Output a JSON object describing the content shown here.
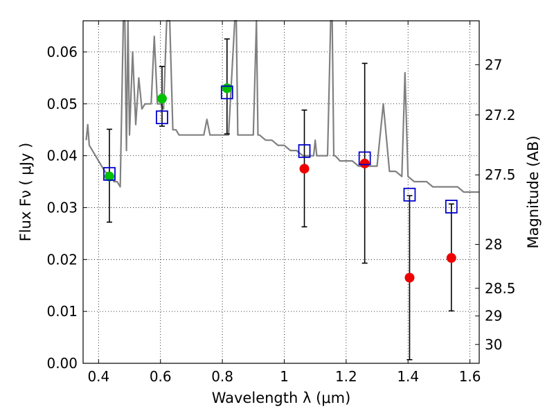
{
  "chart_data": {
    "type": "scatter",
    "title": "",
    "xlabel": "Wavelength  λ (μm)",
    "ylabel": "Flux  Fν  ( μJy )",
    "ylabel_right": "Magnitude (AB)",
    "xlim": [
      0.35,
      1.63
    ],
    "ylim": [
      0.0,
      0.066
    ],
    "grid": true,
    "x_ticks": [
      0.4,
      0.6,
      0.8,
      1.0,
      1.2,
      1.4,
      1.6
    ],
    "x_tick_labels": [
      "0.4",
      "0.6",
      "0.8",
      "1",
      "1.2",
      "1.4",
      "1.6"
    ],
    "y_ticks": [
      0.0,
      0.01,
      0.02,
      0.03,
      0.04,
      0.05,
      0.06
    ],
    "y_tick_labels": [
      "0.00",
      "0.01",
      "0.02",
      "0.03",
      "0.04",
      "0.05",
      "0.06"
    ],
    "mag_ticks": [
      27,
      27.2,
      27.5,
      28,
      28.5,
      29,
      30
    ],
    "mag_tick_labels": [
      "27",
      "27.2",
      "27.5",
      "28",
      "28.5",
      "29",
      "30"
    ],
    "colors": {
      "sed": "#808080",
      "detection": "#00c000",
      "nondetection": "#ee0000",
      "model": "#0000cc",
      "errorbar": "#000000"
    },
    "model_sed_line": {
      "x": [
        0.36,
        0.365,
        0.37,
        0.38,
        0.4,
        0.42,
        0.44,
        0.45,
        0.46,
        0.47,
        0.48,
        0.485,
        0.49,
        0.495,
        0.5,
        0.51,
        0.52,
        0.53,
        0.54,
        0.55,
        0.56,
        0.57,
        0.58,
        0.59,
        0.6,
        0.61,
        0.62,
        0.625,
        0.63,
        0.64,
        0.65,
        0.66,
        0.68,
        0.7,
        0.72,
        0.74,
        0.75,
        0.76,
        0.78,
        0.8,
        0.82,
        0.84,
        0.845,
        0.85,
        0.86,
        0.88,
        0.9,
        0.91,
        0.915,
        0.92,
        0.94,
        0.96,
        0.98,
        1.0,
        1.02,
        1.04,
        1.06,
        1.08,
        1.095,
        1.1,
        1.105,
        1.12,
        1.14,
        1.15,
        1.155,
        1.16,
        1.165,
        1.18,
        1.2,
        1.22,
        1.24,
        1.26,
        1.28,
        1.3,
        1.32,
        1.34,
        1.36,
        1.38,
        1.39,
        1.4,
        1.42,
        1.44,
        1.46,
        1.48,
        1.5,
        1.52,
        1.54,
        1.56,
        1.58,
        1.6,
        1.63
      ],
      "y": [
        0.043,
        0.046,
        0.042,
        0.041,
        0.039,
        0.037,
        0.036,
        0.035,
        0.035,
        0.034,
        0.066,
        0.066,
        0.041,
        0.066,
        0.044,
        0.06,
        0.046,
        0.055,
        0.049,
        0.05,
        0.05,
        0.05,
        0.063,
        0.05,
        0.05,
        0.049,
        0.066,
        0.066,
        0.066,
        0.045,
        0.045,
        0.044,
        0.044,
        0.044,
        0.044,
        0.044,
        0.047,
        0.044,
        0.044,
        0.044,
        0.044,
        0.066,
        0.066,
        0.044,
        0.044,
        0.044,
        0.044,
        0.066,
        0.044,
        0.044,
        0.043,
        0.043,
        0.042,
        0.042,
        0.041,
        0.041,
        0.04,
        0.04,
        0.04,
        0.043,
        0.04,
        0.04,
        0.04,
        0.066,
        0.066,
        0.04,
        0.04,
        0.039,
        0.039,
        0.039,
        0.038,
        0.038,
        0.038,
        0.038,
        0.05,
        0.037,
        0.037,
        0.036,
        0.056,
        0.036,
        0.035,
        0.035,
        0.035,
        0.034,
        0.034,
        0.034,
        0.034,
        0.034,
        0.033,
        0.033,
        0.033
      ]
    },
    "series": [
      {
        "marker": "circle",
        "x": [
          0.435,
          0.605,
          0.815
        ],
        "y": [
          0.036,
          0.051,
          0.053
        ],
        "yerr_low": [
          0.0272,
          0.0457,
          0.0442
        ],
        "yerr_high": [
          0.0451,
          0.0572,
          0.0625
        ]
      },
      {
        "marker": "circle",
        "x": [
          1.065,
          1.26,
          1.405,
          1.54
        ],
        "y": [
          0.0375,
          0.0385,
          0.0165,
          0.0203
        ],
        "yerr_low": [
          0.0263,
          0.0193,
          0.0007,
          0.0101
        ],
        "yerr_high": [
          0.0488,
          0.0578,
          0.0323,
          0.0307
        ]
      },
      {
        "marker": "square",
        "x": [
          0.435,
          0.605,
          0.815,
          1.065,
          1.26,
          1.405,
          1.54
        ],
        "y": [
          0.0365,
          0.0474,
          0.0522,
          0.0409,
          0.0395,
          0.0325,
          0.0302
        ]
      }
    ]
  }
}
